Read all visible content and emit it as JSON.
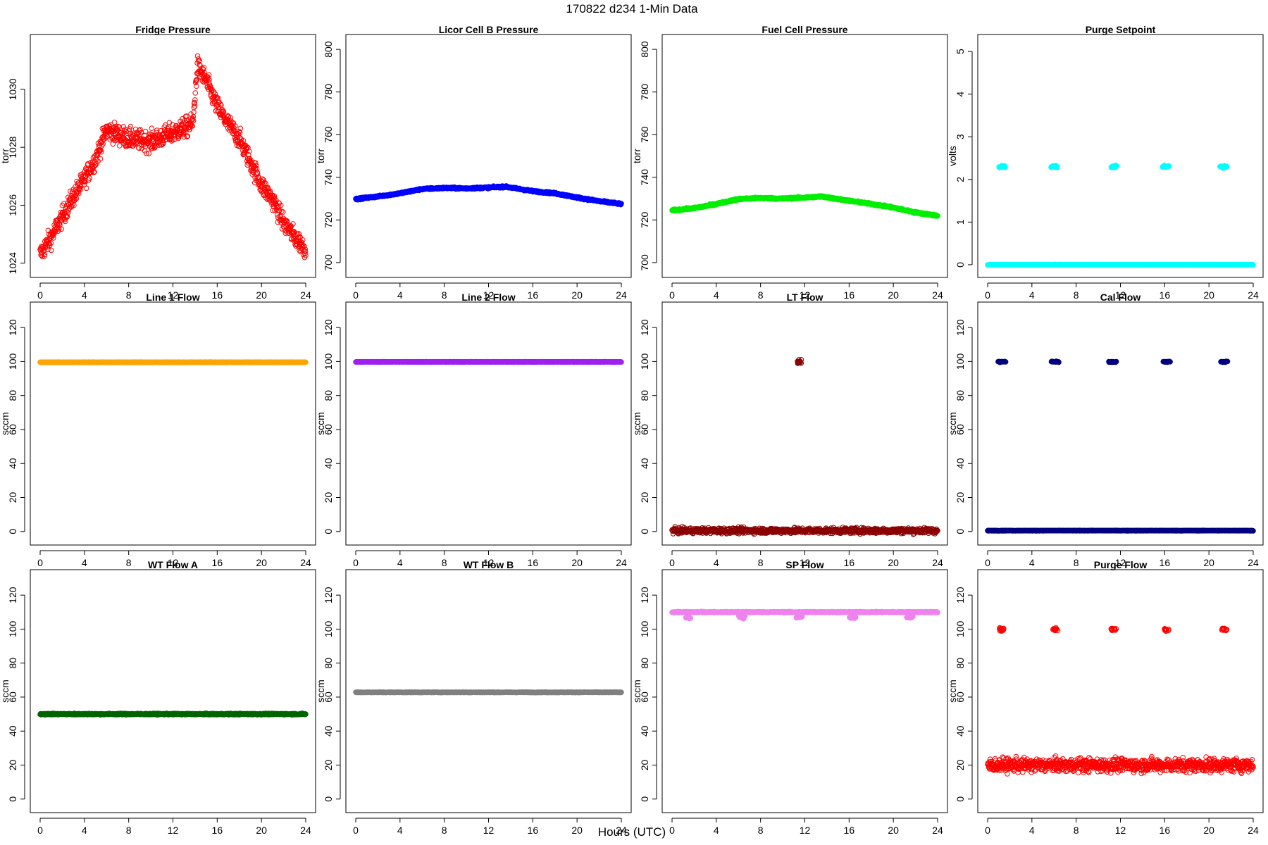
{
  "figure": {
    "title": "170822   d234   1-Min Data",
    "xlabel": "Hours (UTC)"
  },
  "chart_data": [
    {
      "type": "scatter",
      "title": "Fridge Pressure",
      "ylabel": "torr",
      "xlim": [
        0,
        24
      ],
      "xticks": [
        0,
        4,
        8,
        12,
        16,
        20,
        24
      ],
      "ylim": [
        1023.8,
        1031.6
      ],
      "yticks": [
        1024,
        1026,
        1028,
        1030
      ],
      "color": "#ff0000",
      "marker": "open",
      "series": [
        {
          "kind": "points",
          "spread": 0.35,
          "points": [
            [
              0,
              1024.3
            ],
            [
              1,
              1024.9
            ],
            [
              2,
              1025.6
            ],
            [
              3,
              1026.3
            ],
            [
              4,
              1026.9
            ],
            [
              5,
              1027.6
            ],
            [
              6,
              1028.6
            ],
            [
              8,
              1028.3
            ],
            [
              10,
              1028.2
            ],
            [
              12,
              1028.5
            ],
            [
              13.8,
              1028.8
            ],
            [
              14.2,
              1030.8
            ],
            [
              15,
              1030.3
            ],
            [
              16,
              1029.4
            ],
            [
              17,
              1028.8
            ],
            [
              18,
              1028.3
            ],
            [
              19,
              1027.5
            ],
            [
              20,
              1026.7
            ],
            [
              21,
              1026.2
            ],
            [
              22,
              1025.4
            ],
            [
              23,
              1024.9
            ],
            [
              24,
              1024.5
            ]
          ]
        }
      ]
    },
    {
      "type": "scatter",
      "title": "Licor Cell B Pressure",
      "ylabel": "torr",
      "xlim": [
        0,
        24
      ],
      "xticks": [
        0,
        4,
        8,
        12,
        16,
        20,
        24
      ],
      "ylim": [
        697,
        803
      ],
      "yticks": [
        700,
        720,
        740,
        760,
        780,
        800
      ],
      "color": "#0000ff",
      "marker": "filled",
      "series": [
        {
          "kind": "points",
          "spread": 0.4,
          "points": [
            [
              0,
              729.8
            ],
            [
              2,
              731
            ],
            [
              4,
              732.5
            ],
            [
              6,
              734.5
            ],
            [
              8,
              735
            ],
            [
              10,
              734.8
            ],
            [
              12,
              735.2
            ],
            [
              13.5,
              735.6
            ],
            [
              16,
              733.5
            ],
            [
              18,
              732.5
            ],
            [
              20,
              730.5
            ],
            [
              22,
              728.8
            ],
            [
              24,
              727.5
            ]
          ]
        }
      ]
    },
    {
      "type": "scatter",
      "title": "Fuel Cell Pressure",
      "ylabel": "torr",
      "xlim": [
        0,
        24
      ],
      "xticks": [
        0,
        4,
        8,
        12,
        16,
        20,
        24
      ],
      "ylim": [
        697,
        803
      ],
      "yticks": [
        700,
        720,
        740,
        760,
        780,
        800
      ],
      "color": "#00ee00",
      "marker": "filled",
      "series": [
        {
          "kind": "points",
          "spread": 0.4,
          "points": [
            [
              0,
              724.5
            ],
            [
              2,
              725.5
            ],
            [
              4,
              727.5
            ],
            [
              6,
              729.8
            ],
            [
              8,
              730.3
            ],
            [
              10,
              730
            ],
            [
              12,
              730.5
            ],
            [
              13.5,
              731
            ],
            [
              16,
              729
            ],
            [
              18,
              727.5
            ],
            [
              20,
              725.8
            ],
            [
              22,
              723.5
            ],
            [
              24,
              722
            ]
          ]
        }
      ]
    },
    {
      "type": "scatter",
      "title": "Purge Setpoint",
      "ylabel": "volts",
      "xlim": [
        0,
        24
      ],
      "xticks": [
        0,
        4,
        8,
        12,
        16,
        20,
        24
      ],
      "ylim": [
        -0.1,
        5.2
      ],
      "yticks": [
        0,
        1,
        2,
        3,
        4,
        5
      ],
      "color": "#00ffff",
      "marker": "filled",
      "series": [
        {
          "kind": "points",
          "spread": 0.005,
          "points": [
            [
              0,
              0
            ],
            [
              24,
              0
            ]
          ]
        },
        {
          "kind": "cluster",
          "y": 2.3,
          "x": [
            1.3,
            6,
            11.4,
            16.1,
            21.3
          ],
          "width": 0.6,
          "spread": 0.03
        }
      ]
    },
    {
      "type": "scatter",
      "title": "Line 1 Flow",
      "ylabel": "sccm",
      "xlim": [
        0,
        24
      ],
      "xticks": [
        0,
        4,
        8,
        12,
        16,
        20,
        24
      ],
      "ylim": [
        -3,
        130
      ],
      "yticks": [
        0,
        20,
        40,
        60,
        80,
        100,
        120
      ],
      "color": "#ffa500",
      "marker": "filled",
      "series": [
        {
          "kind": "points",
          "spread": 0.1,
          "points": [
            [
              0,
              99.6
            ],
            [
              24,
              99.6
            ]
          ]
        }
      ]
    },
    {
      "type": "scatter",
      "title": "Line 2 Flow",
      "ylabel": "sccm",
      "xlim": [
        0,
        24
      ],
      "xticks": [
        0,
        4,
        8,
        12,
        16,
        20,
        24
      ],
      "ylim": [
        -3,
        130
      ],
      "yticks": [
        0,
        20,
        40,
        60,
        80,
        100,
        120
      ],
      "color": "#a020f0",
      "marker": "filled",
      "series": [
        {
          "kind": "points",
          "spread": 0.1,
          "points": [
            [
              0,
              99.8
            ],
            [
              24,
              99.8
            ]
          ]
        }
      ]
    },
    {
      "type": "scatter",
      "title": "LT Flow",
      "ylabel": "sccm",
      "xlim": [
        0,
        24
      ],
      "xticks": [
        0,
        4,
        8,
        12,
        16,
        20,
        24
      ],
      "ylim": [
        -3,
        130
      ],
      "yticks": [
        0,
        20,
        40,
        60,
        80,
        100,
        120
      ],
      "color": "#8b0000",
      "marker": "open",
      "series": [
        {
          "kind": "points",
          "spread": 1.6,
          "points": [
            [
              0,
              0.5
            ],
            [
              24,
              0.5
            ]
          ]
        },
        {
          "kind": "cluster",
          "y": 99.5,
          "x": [
            11.5
          ],
          "width": 0.4,
          "spread": 1.5
        }
      ]
    },
    {
      "type": "scatter",
      "title": "Cal Flow",
      "ylabel": "sccm",
      "xlim": [
        0,
        24
      ],
      "xticks": [
        0,
        4,
        8,
        12,
        16,
        20,
        24
      ],
      "ylim": [
        -3,
        130
      ],
      "yticks": [
        0,
        20,
        40,
        60,
        80,
        100,
        120
      ],
      "color": "#000080",
      "marker": "filled",
      "series": [
        {
          "kind": "points",
          "spread": 0.15,
          "points": [
            [
              0,
              0.5
            ],
            [
              24,
              0.5
            ]
          ]
        },
        {
          "kind": "cluster",
          "y": 99.8,
          "x": [
            1.3,
            6.1,
            11.3,
            16.2,
            21.4
          ],
          "width": 0.7,
          "spread": 0.3
        }
      ]
    },
    {
      "type": "scatter",
      "title": "WT Flow A",
      "ylabel": "sccm",
      "xlim": [
        0,
        24
      ],
      "xticks": [
        0,
        4,
        8,
        12,
        16,
        20,
        24
      ],
      "ylim": [
        -3,
        130
      ],
      "yticks": [
        0,
        20,
        40,
        60,
        80,
        100,
        120
      ],
      "color": "#006400",
      "marker": "filled",
      "series": [
        {
          "kind": "points",
          "spread": 0.4,
          "points": [
            [
              0,
              50
            ],
            [
              24,
              50
            ]
          ]
        }
      ]
    },
    {
      "type": "scatter",
      "title": "WT Flow B",
      "ylabel": "sccm",
      "xlim": [
        0,
        24
      ],
      "xticks": [
        0,
        4,
        8,
        12,
        16,
        20,
        24
      ],
      "ylim": [
        -3,
        130
      ],
      "yticks": [
        0,
        20,
        40,
        60,
        80,
        100,
        120
      ],
      "color": "#808080",
      "marker": "filled",
      "series": [
        {
          "kind": "points",
          "spread": 0.15,
          "points": [
            [
              0,
              62.8
            ],
            [
              24,
              62.8
            ]
          ]
        }
      ]
    },
    {
      "type": "scatter",
      "title": "SP Flow",
      "ylabel": "sccm",
      "xlim": [
        0,
        24
      ],
      "xticks": [
        0,
        4,
        8,
        12,
        16,
        20,
        24
      ],
      "ylim": [
        -3,
        130
      ],
      "yticks": [
        0,
        20,
        40,
        60,
        80,
        100,
        120
      ],
      "color": "#ee82ee",
      "marker": "filled",
      "series": [
        {
          "kind": "points",
          "spread": 0.3,
          "points": [
            [
              0,
              110
            ],
            [
              24,
              110
            ]
          ]
        },
        {
          "kind": "cluster",
          "y": 107,
          "x": [
            1.4,
            6.3,
            11.5,
            16.3,
            21.5
          ],
          "width": 0.6,
          "spread": 0.8
        }
      ]
    },
    {
      "type": "scatter",
      "title": "Purge Flow",
      "ylabel": "sccm",
      "xlim": [
        0,
        24
      ],
      "xticks": [
        0,
        4,
        8,
        12,
        16,
        20,
        24
      ],
      "ylim": [
        -3,
        130
      ],
      "yticks": [
        0,
        20,
        40,
        60,
        80,
        100,
        120
      ],
      "color": "#ff0000",
      "marker": "open",
      "series": [
        {
          "kind": "points",
          "spread": 4,
          "points": [
            [
              0,
              20
            ],
            [
              24,
              20
            ]
          ]
        },
        {
          "kind": "cluster",
          "y": 99.8,
          "x": [
            1.3,
            6.1,
            11.4,
            16.2,
            21.4
          ],
          "width": 0.5,
          "spread": 1
        }
      ]
    }
  ]
}
